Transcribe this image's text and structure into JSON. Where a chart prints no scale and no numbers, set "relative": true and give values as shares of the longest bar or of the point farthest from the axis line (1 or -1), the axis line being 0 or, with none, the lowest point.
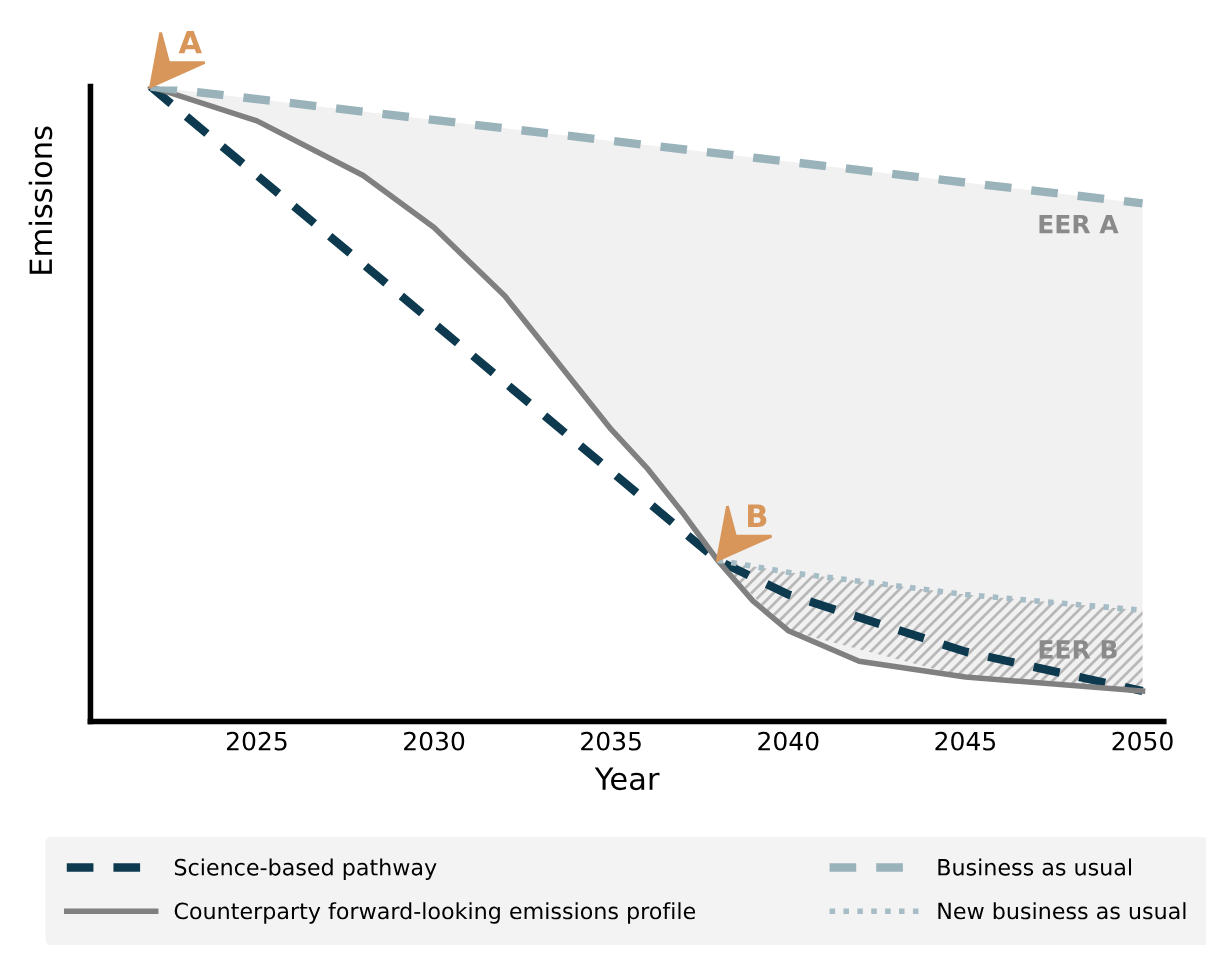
{
  "chart_data": {
    "type": "line",
    "relative": true,
    "xlabel": "Year",
    "ylabel": "Emissions",
    "xlim": [
      2020.3,
      2050.6
    ],
    "xticks": [
      2025,
      2030,
      2035,
      2040,
      2045,
      2050
    ],
    "legend": "bottom",
    "grid": false,
    "marker": "none",
    "series": [
      {
        "name": "Science-based pathway",
        "color": "#0d3a4f",
        "line_style": "dashed",
        "x": [
          2022,
          2038,
          2040,
          2045,
          2050
        ],
        "values": [
          1,
          0.254,
          0.2,
          0.11,
          0.048
        ]
      },
      {
        "name": "Counterparty forward-looking emissions profile",
        "color": "#808080",
        "line_style": "solid",
        "x": [
          2022,
          2025,
          2028,
          2030,
          2032,
          2033,
          2034,
          2035,
          2036,
          2037,
          2038,
          2039,
          2040,
          2042,
          2045,
          2050
        ],
        "values": [
          1,
          0.946,
          0.86,
          0.778,
          0.67,
          0.6,
          0.53,
          0.46,
          0.4,
          0.33,
          0.254,
          0.19,
          0.143,
          0.095,
          0.07,
          0.048
        ]
      },
      {
        "name": "Business as usual",
        "color": "#9ab3ba",
        "line_style": "dashed",
        "x": [
          2022,
          2050
        ],
        "values": [
          1,
          0.816
        ]
      },
      {
        "name": "New business as usual",
        "color": "#a6bcc6",
        "line_style": "dotted",
        "x": [
          2038,
          2040,
          2045,
          2050
        ],
        "values": [
          0.254,
          0.235,
          0.2,
          0.175
        ],
        "lower": [
          0.254,
          0.143,
          0.07,
          0.048
        ],
        "upper": [
          0.254,
          0.235,
          0.2,
          0.175
        ]
      }
    ],
    "annotations": [
      {
        "text": "A",
        "x": 2022,
        "y": 1
      },
      {
        "text": "B",
        "x": 2038,
        "y": 0.254
      },
      "EER A",
      "EER B"
    ]
  }
}
